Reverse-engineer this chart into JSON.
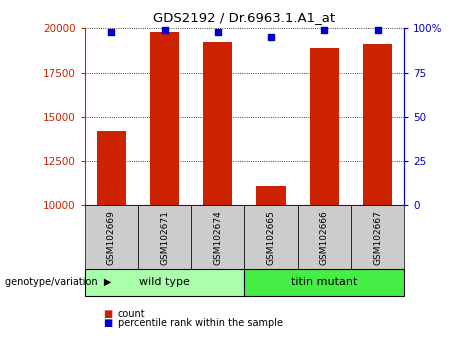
{
  "title": "GDS2192 / Dr.6963.1.A1_at",
  "samples": [
    "GSM102669",
    "GSM102671",
    "GSM102674",
    "GSM102665",
    "GSM102666",
    "GSM102667"
  ],
  "counts": [
    14200,
    19800,
    19200,
    11100,
    18900,
    19100
  ],
  "percentile_ranks": [
    98,
    99,
    98,
    95,
    99,
    99
  ],
  "ymin": 10000,
  "ymax": 20000,
  "yticks": [
    10000,
    12500,
    15000,
    17500,
    20000
  ],
  "y2ticks": [
    0,
    25,
    50,
    75,
    100
  ],
  "y2tick_labels": [
    "0",
    "25",
    "50",
    "75",
    "100%"
  ],
  "bar_color": "#cc2200",
  "percentile_color": "#0000cc",
  "groups": [
    {
      "label": "wild type",
      "n_samples": 3,
      "color": "#aaffaa"
    },
    {
      "label": "titin mutant",
      "n_samples": 3,
      "color": "#44ee44"
    }
  ],
  "group_label": "genotype/variation",
  "legend_count_label": "count",
  "legend_percentile_label": "percentile rank within the sample",
  "tick_label_color_left": "#cc2200",
  "tick_label_color_right": "#0000cc",
  "label_area_color": "#cccccc",
  "bar_width": 0.55,
  "figsize": [
    4.7,
    3.54
  ],
  "dpi": 100
}
